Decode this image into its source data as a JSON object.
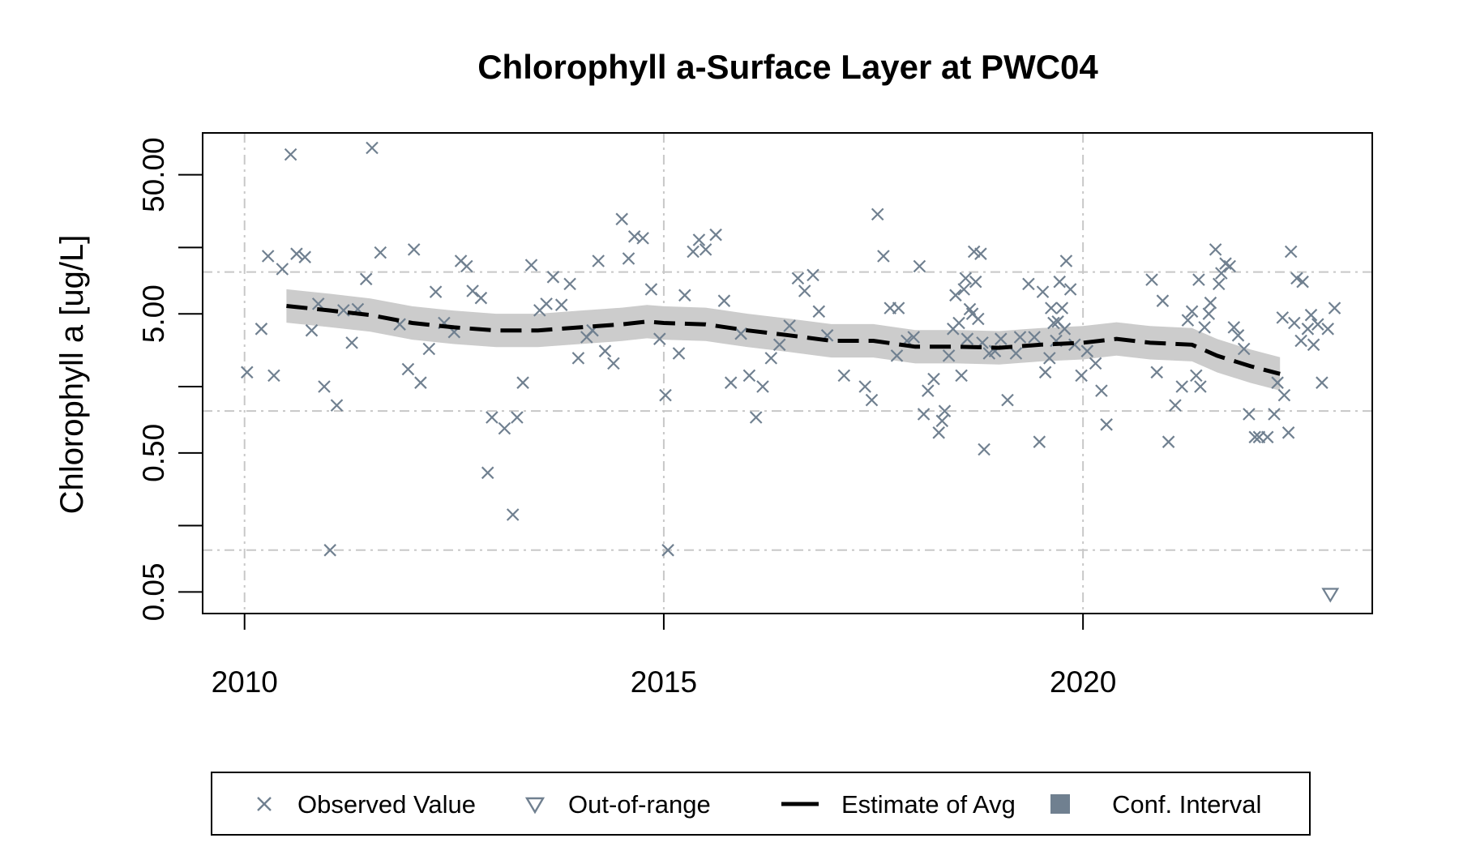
{
  "chart_data": {
    "type": "scatter",
    "title": "Chlorophyll a-Surface Layer at PWC04",
    "xlabel": "",
    "ylabel": "Chlorophyll a [ug/L]",
    "xlim": [
      2009.5,
      2023.45
    ],
    "ylim": [
      0.035,
      100
    ],
    "y_scale": "log",
    "x_ticks": [
      2010,
      2015,
      2020
    ],
    "y_ticks": [
      0.05,
      0.5,
      5.0,
      50.0
    ],
    "y_tick_labels": [
      "0.05",
      "0.50",
      "5.00",
      "50.00"
    ],
    "grid": true,
    "legend_position": "bottom",
    "colors": {
      "observed": "#708090",
      "estimate": "#000000",
      "ci": "#cccccc",
      "ci_legend": "#708090",
      "grid": "#c8c8c8"
    },
    "legend": [
      {
        "label": "Observed Value",
        "symbol": "x"
      },
      {
        "label": "Out-of-range",
        "symbol": "triangle-down"
      },
      {
        "label": "Estimate of Avg",
        "symbol": "dashed-line"
      },
      {
        "label": "Conf. Interval",
        "symbol": "square"
      }
    ],
    "observed": [
      [
        2010.03,
        1.9
      ],
      [
        2010.2,
        3.9
      ],
      [
        2010.28,
        13.0
      ],
      [
        2010.35,
        1.8
      ],
      [
        2010.45,
        10.5
      ],
      [
        2010.55,
        70.0
      ],
      [
        2010.62,
        13.5
      ],
      [
        2010.72,
        12.8
      ],
      [
        2010.8,
        3.8
      ],
      [
        2010.88,
        5.9
      ],
      [
        2010.95,
        1.5
      ],
      [
        2011.02,
        0.1
      ],
      [
        2011.1,
        1.1
      ],
      [
        2011.18,
        5.3
      ],
      [
        2011.28,
        3.1
      ],
      [
        2011.35,
        5.4
      ],
      [
        2011.45,
        8.9
      ],
      [
        2011.52,
        78.0
      ],
      [
        2011.62,
        13.8
      ],
      [
        2011.85,
        4.2
      ],
      [
        2011.95,
        2.0
      ],
      [
        2012.02,
        14.5
      ],
      [
        2012.1,
        1.6
      ],
      [
        2012.2,
        2.8
      ],
      [
        2012.28,
        7.2
      ],
      [
        2012.38,
        4.3
      ],
      [
        2012.5,
        3.7
      ],
      [
        2012.58,
        12.0
      ],
      [
        2012.65,
        11.0
      ],
      [
        2012.72,
        7.3
      ],
      [
        2012.82,
        6.5
      ],
      [
        2012.9,
        0.36
      ],
      [
        2012.95,
        0.9
      ],
      [
        2013.1,
        0.75
      ],
      [
        2013.2,
        0.18
      ],
      [
        2013.25,
        0.9
      ],
      [
        2013.32,
        1.6
      ],
      [
        2013.42,
        11.2
      ],
      [
        2013.52,
        5.3
      ],
      [
        2013.6,
        5.9
      ],
      [
        2013.68,
        9.2
      ],
      [
        2013.78,
        5.8
      ],
      [
        2013.88,
        8.2
      ],
      [
        2013.98,
        2.4
      ],
      [
        2014.08,
        3.4
      ],
      [
        2014.15,
        3.8
      ],
      [
        2014.22,
        12.0
      ],
      [
        2014.3,
        2.7
      ],
      [
        2014.4,
        2.2
      ],
      [
        2014.5,
        24.0
      ],
      [
        2014.58,
        12.5
      ],
      [
        2014.65,
        18.0
      ],
      [
        2014.75,
        17.5
      ],
      [
        2014.85,
        7.5
      ],
      [
        2014.95,
        3.3
      ],
      [
        2015.02,
        1.3
      ],
      [
        2015.05,
        0.1
      ],
      [
        2015.18,
        2.6
      ],
      [
        2015.25,
        6.8
      ],
      [
        2015.35,
        14.0
      ],
      [
        2015.42,
        17.0
      ],
      [
        2015.5,
        14.5
      ],
      [
        2015.62,
        18.5
      ],
      [
        2015.72,
        6.2
      ],
      [
        2015.8,
        1.6
      ],
      [
        2015.92,
        3.6
      ],
      [
        2016.02,
        1.8
      ],
      [
        2016.1,
        0.9
      ],
      [
        2016.18,
        1.5
      ],
      [
        2016.28,
        2.4
      ],
      [
        2016.38,
        3.0
      ],
      [
        2016.5,
        4.1
      ],
      [
        2016.6,
        9.0
      ],
      [
        2016.68,
        7.3
      ],
      [
        2016.78,
        9.5
      ],
      [
        2016.85,
        5.2
      ],
      [
        2016.95,
        3.5
      ],
      [
        2017.15,
        1.8
      ],
      [
        2017.4,
        1.5
      ],
      [
        2017.48,
        1.2
      ],
      [
        2017.55,
        26.0
      ],
      [
        2017.62,
        13.0
      ],
      [
        2017.7,
        5.5
      ],
      [
        2017.8,
        5.5
      ],
      [
        2017.78,
        2.5
      ],
      [
        2017.9,
        3.2
      ],
      [
        2017.98,
        3.4
      ],
      [
        2018.05,
        11.0
      ],
      [
        2018.1,
        0.95
      ],
      [
        2018.15,
        1.4
      ],
      [
        2018.22,
        1.7
      ],
      [
        2018.28,
        0.7
      ],
      [
        2018.32,
        0.85
      ],
      [
        2018.35,
        1.0
      ],
      [
        2018.4,
        2.5
      ],
      [
        2018.45,
        3.9
      ],
      [
        2018.48,
        6.8
      ],
      [
        2018.52,
        4.3
      ],
      [
        2018.55,
        1.8
      ],
      [
        2018.58,
        7.5
      ],
      [
        2018.6,
        9.0
      ],
      [
        2018.62,
        3.3
      ],
      [
        2018.65,
        5.4
      ],
      [
        2018.68,
        5.0
      ],
      [
        2018.7,
        14.0
      ],
      [
        2018.72,
        8.5
      ],
      [
        2018.75,
        4.6
      ],
      [
        2018.78,
        13.5
      ],
      [
        2018.8,
        3.1
      ],
      [
        2018.82,
        0.53
      ],
      [
        2018.88,
        2.6
      ],
      [
        2018.95,
        2.7
      ],
      [
        2019.02,
        3.3
      ],
      [
        2019.1,
        1.2
      ],
      [
        2019.2,
        2.6
      ],
      [
        2019.25,
        3.4
      ],
      [
        2019.35,
        8.2
      ],
      [
        2019.42,
        3.4
      ],
      [
        2019.48,
        0.6
      ],
      [
        2019.52,
        7.2
      ],
      [
        2019.55,
        1.9
      ],
      [
        2019.6,
        2.4
      ],
      [
        2019.62,
        5.5
      ],
      [
        2019.65,
        4.3
      ],
      [
        2019.68,
        3.2
      ],
      [
        2019.7,
        4.4
      ],
      [
        2019.72,
        8.5
      ],
      [
        2019.75,
        5.5
      ],
      [
        2019.78,
        3.9
      ],
      [
        2019.8,
        12.0
      ],
      [
        2019.85,
        7.5
      ],
      [
        2019.9,
        3.0
      ],
      [
        2019.98,
        1.8
      ],
      [
        2020.05,
        2.7
      ],
      [
        2020.15,
        2.2
      ],
      [
        2020.22,
        1.4
      ],
      [
        2020.28,
        0.8
      ],
      [
        2020.82,
        8.8
      ],
      [
        2020.88,
        1.9
      ],
      [
        2020.95,
        6.2
      ],
      [
        2021.02,
        0.6
      ],
      [
        2021.1,
        1.1
      ],
      [
        2021.18,
        1.5
      ],
      [
        2021.25,
        4.5
      ],
      [
        2021.3,
        5.2
      ],
      [
        2021.35,
        1.8
      ],
      [
        2021.38,
        8.8
      ],
      [
        2021.4,
        1.5
      ],
      [
        2021.45,
        4.0
      ],
      [
        2021.5,
        5.0
      ],
      [
        2021.52,
        6.0
      ],
      [
        2021.58,
        14.5
      ],
      [
        2021.62,
        8.2
      ],
      [
        2021.65,
        9.8
      ],
      [
        2021.7,
        11.5
      ],
      [
        2021.75,
        11.0
      ],
      [
        2021.8,
        4.0
      ],
      [
        2021.85,
        3.5
      ],
      [
        2021.92,
        2.8
      ],
      [
        2021.98,
        0.95
      ],
      [
        2022.05,
        0.65
      ],
      [
        2022.1,
        0.65
      ],
      [
        2022.2,
        0.65
      ],
      [
        2022.28,
        0.95
      ],
      [
        2022.32,
        1.6
      ],
      [
        2022.38,
        4.7
      ],
      [
        2022.4,
        1.3
      ],
      [
        2022.45,
        0.7
      ],
      [
        2022.48,
        14.0
      ],
      [
        2022.52,
        4.3
      ],
      [
        2022.55,
        9.0
      ],
      [
        2022.6,
        3.2
      ],
      [
        2022.62,
        8.5
      ],
      [
        2022.68,
        3.9
      ],
      [
        2022.72,
        4.9
      ],
      [
        2022.75,
        3.0
      ],
      [
        2022.8,
        4.2
      ],
      [
        2022.85,
        1.6
      ],
      [
        2022.92,
        3.9
      ],
      [
        2023.0,
        5.5
      ]
    ],
    "out_of_range": [
      [
        2022.95,
        0.048
      ]
    ],
    "estimate": [
      [
        2010.5,
        5.7
      ],
      [
        2011.0,
        5.3
      ],
      [
        2011.5,
        4.9
      ],
      [
        2012.0,
        4.3
      ],
      [
        2012.5,
        4.0
      ],
      [
        2013.0,
        3.8
      ],
      [
        2013.5,
        3.8
      ],
      [
        2014.0,
        4.0
      ],
      [
        2014.5,
        4.2
      ],
      [
        2014.8,
        4.4
      ],
      [
        2015.0,
        4.3
      ],
      [
        2015.5,
        4.2
      ],
      [
        2016.0,
        3.8
      ],
      [
        2016.5,
        3.5
      ],
      [
        2017.0,
        3.2
      ],
      [
        2017.5,
        3.2
      ],
      [
        2018.0,
        2.9
      ],
      [
        2018.5,
        2.9
      ],
      [
        2019.0,
        2.85
      ],
      [
        2019.5,
        3.0
      ],
      [
        2020.0,
        3.1
      ],
      [
        2020.4,
        3.3
      ],
      [
        2020.8,
        3.1
      ],
      [
        2021.3,
        3.0
      ],
      [
        2021.6,
        2.5
      ],
      [
        2022.0,
        2.1
      ],
      [
        2022.35,
        1.85
      ]
    ],
    "ci_half_width_log10": 0.12
  }
}
